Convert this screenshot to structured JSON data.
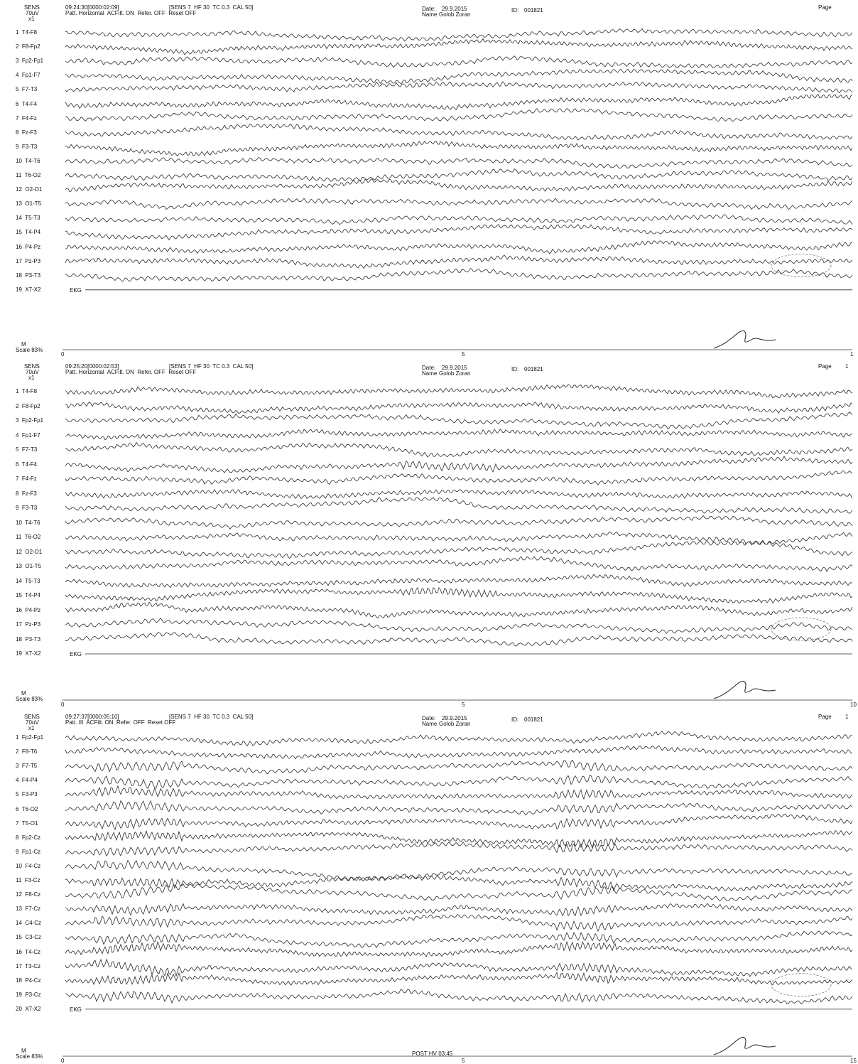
{
  "pages": [
    {
      "sens": "SENS",
      "gain": "70uV",
      "mult": "x1",
      "time": "09:24:30[0000:02:09]",
      "settings": "[SENS 7  HF 30  TC 0.3  CAL 50]",
      "montage_line": "Patt. Horizontal  ACFilt. ON  Refer. OFF  Reset OFF",
      "date_label": "Date:",
      "date": "29.9.2015",
      "name_label": "Name",
      "name": "Golob Zoran",
      "id_label": "ID:",
      "id": "001821",
      "page_label": "Page",
      "page_num": "",
      "channels": [
        "1  T4-F8",
        "2  F8-Fp2",
        "3  Fp2-Fp1",
        "4  Fp1-F7",
        "5  F7-T3",
        "6  T4-F4",
        "7  F4-Fz",
        "8  Fz-F3",
        "9  F3-T3",
        "10  T4-T6",
        "11  T6-O2",
        "12  O2-O1",
        "13  O1-T5",
        "14  T5-T3",
        "15  T4-P4",
        "16  P4-Pz",
        "17  Pz-P3",
        "18  P3-T3",
        "19  X7-X2"
      ],
      "ekg_label": "EKG",
      "scale_m": "M",
      "scale": "Scale 83%",
      "ticks": [
        "0",
        "5",
        "1"
      ],
      "note": ""
    },
    {
      "sens": "SENS",
      "gain": "70uV",
      "mult": "x1",
      "time": "09:25:20[0000:02:53]",
      "settings": "[SENS 7  HF 30  TC 0.3  CAL 50]",
      "montage_line": "Patt. Horizontal  ACFilt. ON  Refer. OFF  Reset OFF",
      "date_label": "Date:",
      "date": "29.9.2015",
      "name_label": "Name",
      "name": "Golob Zoran",
      "id_label": "ID:",
      "id": "001821",
      "page_label": "Page",
      "page_num": "1",
      "channels": [
        "1  T4-F8",
        "2  F8-Fp2",
        "3  Fp2-Fp1",
        "4  Fp1-F7",
        "5  F7-T3",
        "6  T4-F4",
        "7  F4-Fz",
        "8  Fz-F3",
        "9  F3-T3",
        "10  T4-T6",
        "11  T6-O2",
        "12  O2-O1",
        "13  O1-T5",
        "14  T5-T3",
        "15  T4-P4",
        "16  P4-Pz",
        "17  Pz-P3",
        "18  P3-T3",
        "19  X7-X2"
      ],
      "ekg_label": "EKG",
      "scale_m": "M",
      "scale": "Scale 83%",
      "ticks": [
        "0",
        "5",
        "10"
      ],
      "note": ""
    },
    {
      "sens": "SENS",
      "gain": "70uV",
      "mult": "x1",
      "time": "09:27:37[0000:05:10]",
      "settings": "[SENS 7  HF 30  TC 0.3  CAL 50]",
      "montage_line": "Patt. III  ACFilt. ON  Refer. OFF  Reset OFF",
      "date_label": "Date:",
      "date": "29.9.2015",
      "name_label": "Name",
      "name": "Golob Zoran",
      "id_label": "ID:",
      "id": "001821",
      "page_label": "Page",
      "page_num": "1",
      "channels": [
        "1  Fp2-Fp1",
        "2  F8-T6",
        "3  F7-T5",
        "4  F4-P4",
        "5  F3-P3",
        "6  T6-O2",
        "7  T5-O1",
        "8  Fp2-Cz",
        "9  Fp1-Cz",
        "10  F4-Cz",
        "11  F3-Cz",
        "12  F8-Cz",
        "13  F7-Cz",
        "14  C4-Cz",
        "15  C3-Cz",
        "16  T4-Cz",
        "17  T3-Cz",
        "18  P4-Cz",
        "19  P3-Cz",
        "20  X7-X2"
      ],
      "ekg_label": "EKG",
      "scale_m": "M",
      "scale": "Scale 83%",
      "ticks": [
        "0",
        "5",
        "15"
      ],
      "note": "POST HV 03:45"
    }
  ]
}
